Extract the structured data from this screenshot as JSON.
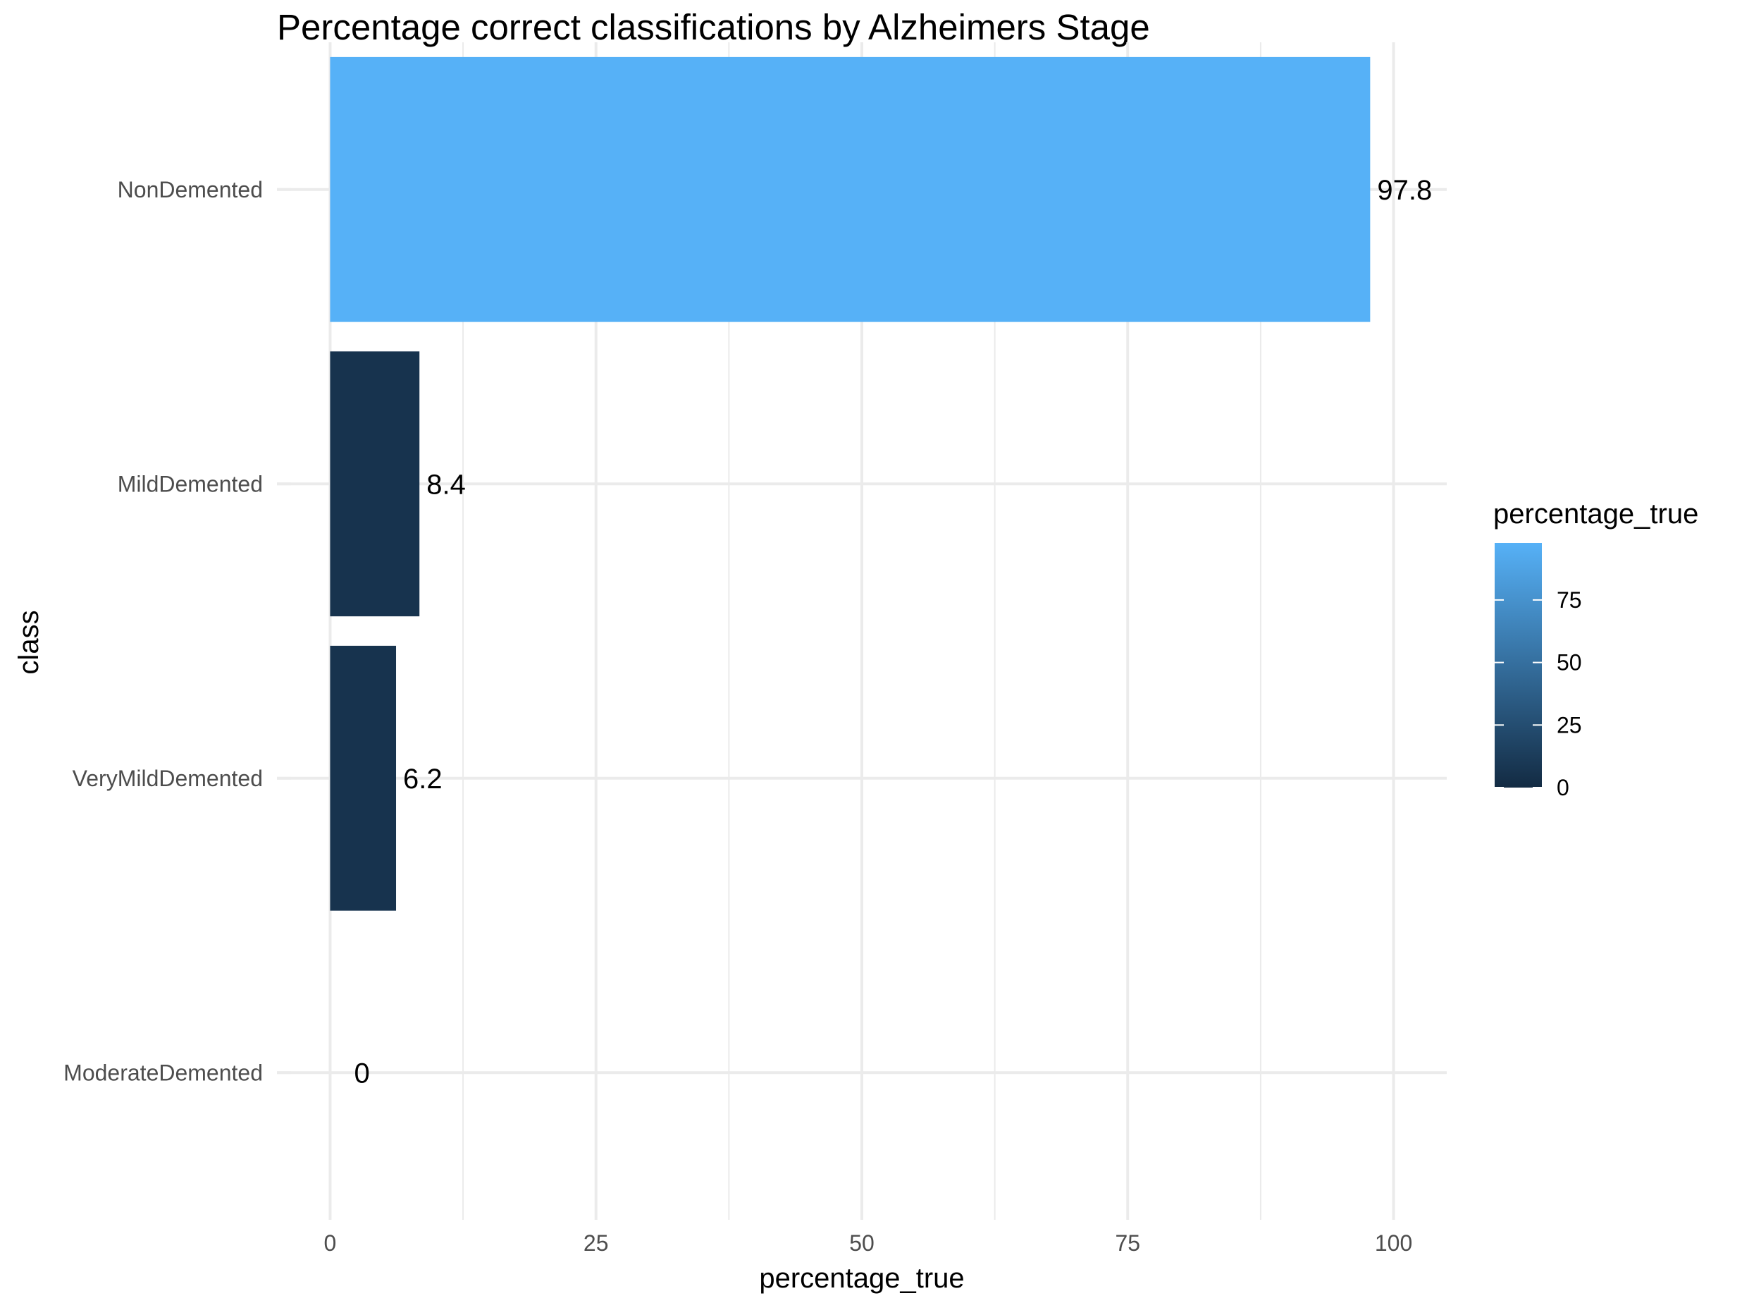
{
  "chart_data": {
    "type": "bar",
    "orientation": "horizontal",
    "title": "Percentage correct classifications by Alzheimers Stage",
    "xlabel": "percentage_true",
    "ylabel": "class",
    "categories": [
      "NonDemented",
      "MildDemented",
      "VeryMildDemented",
      "ModerateDemented"
    ],
    "values": [
      97.8,
      8.4,
      6.2,
      0
    ],
    "data_labels": [
      "97.8",
      "8.4",
      "6.2",
      "0"
    ],
    "xlim": [
      -5,
      105
    ],
    "x_ticks": [
      0,
      25,
      50,
      75,
      100
    ],
    "x_tick_labels": [
      "0",
      "25",
      "50",
      "75",
      "100"
    ],
    "grid": true,
    "legend": {
      "title": "percentage_true",
      "type": "colorbar",
      "placement": "right",
      "range": [
        0,
        97.8
      ],
      "ticks": [
        0,
        25,
        50,
        75
      ],
      "tick_labels": [
        "0",
        "25",
        "50",
        "75"
      ],
      "color_low": "#132b43",
      "color_high": "#56b1f7"
    }
  }
}
